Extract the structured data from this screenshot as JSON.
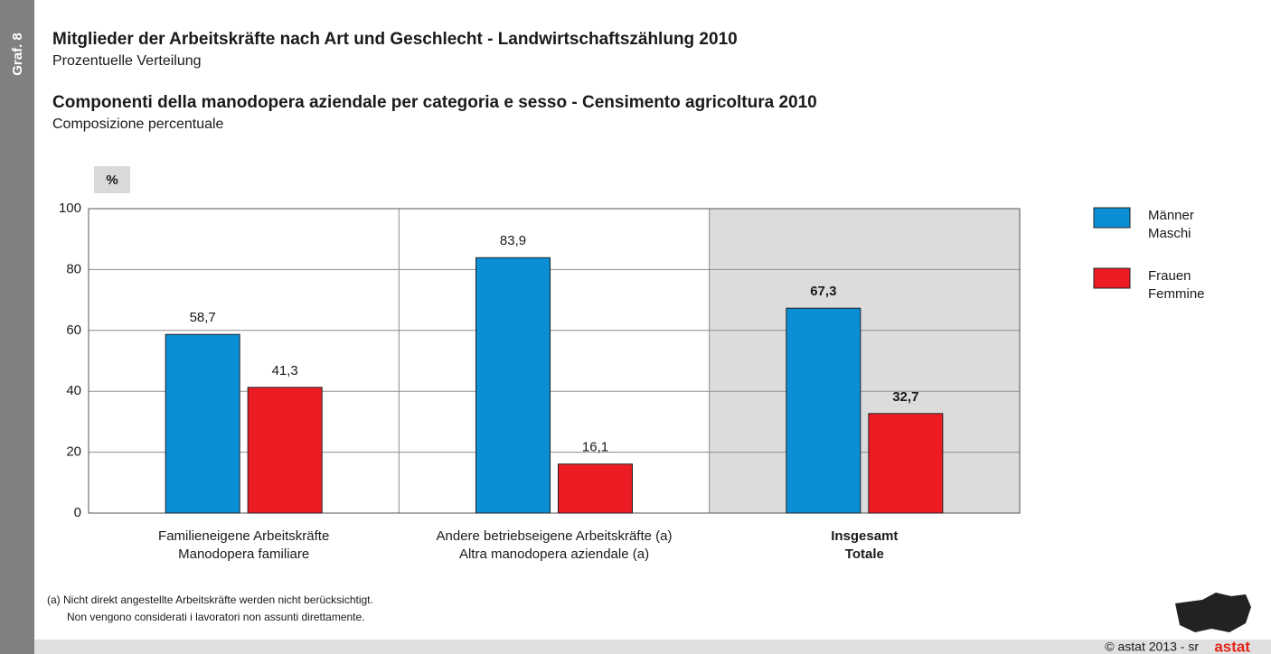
{
  "sidebar_label": "Graf. 8",
  "chart_data": {
    "type": "bar",
    "title": "Mitglieder der Arbeitskräfte nach Art und  Geschlecht - Landwirtschaftszählung 2010",
    "subtitle": "Prozentuelle Verteilung",
    "title2": "Componenti della manodopera aziendale per categoria e sesso - Censimento agricoltura 2010",
    "subtitle2": "Composizione percentuale",
    "y_axis_label": "%",
    "categories": [
      [
        "Familieneigene Arbeitskräfte",
        "Manodopera familiare"
      ],
      [
        "Andere betriebseigene Arbeitskräfte (a)",
        "Altra manodopera aziendale (a)"
      ],
      [
        "Insgesamt",
        "Totale"
      ]
    ],
    "series": [
      {
        "name": [
          "Männer",
          "Maschi"
        ],
        "color": "#0a8fd6",
        "values": [
          58.7,
          83.9,
          67.3
        ],
        "value_labels": [
          "58,7",
          "83,9",
          "67,3"
        ]
      },
      {
        "name": [
          "Frauen",
          "Femmine"
        ],
        "color": "#ed1c24",
        "values": [
          41.3,
          16.1,
          32.7
        ],
        "value_labels": [
          "41,3",
          "16,1",
          "32,7"
        ]
      }
    ],
    "ylim": [
      0,
      100
    ],
    "yticks": [
      0,
      20,
      40,
      60,
      80,
      100
    ],
    "grid": true,
    "legend": "right",
    "footnote": [
      "(a)  Nicht direkt angestellte Arbeitskräfte werden nicht berücksichtigt.",
      "Non vengono considerati i lavoratori non assunti direttamente."
    ],
    "copyright": "© astat 2013 - sr",
    "logo": "astat"
  }
}
